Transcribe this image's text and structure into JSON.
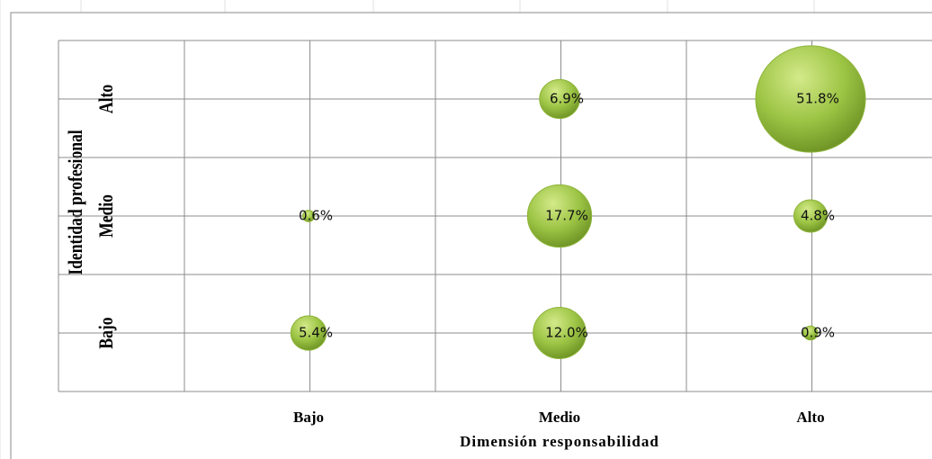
{
  "chart_data": {
    "type": "bubble",
    "xlabel": "Dimensión  responsabilidad",
    "ylabel": "Identidad profesional",
    "x_categories": [
      "Bajo",
      "Medio",
      "Alto"
    ],
    "y_categories": [
      "Bajo",
      "Medio",
      "Alto"
    ],
    "x": [
      "Medio",
      "Alto",
      "Bajo",
      "Medio",
      "Alto",
      "Bajo",
      "Medio",
      "Alto"
    ],
    "y": [
      "Alto",
      "Alto",
      "Medio",
      "Medio",
      "Medio",
      "Bajo",
      "Bajo",
      "Bajo"
    ],
    "values": [
      6.9,
      51.8,
      0.6,
      17.7,
      4.8,
      5.4,
      12.0,
      0.9
    ],
    "value_labels": [
      "6.9%",
      "51.8%",
      "0.6%",
      "17.7%",
      "4.8%",
      "5.4%",
      "12.0%",
      "0.9%"
    ],
    "color": "#8db43a",
    "grid": true
  }
}
